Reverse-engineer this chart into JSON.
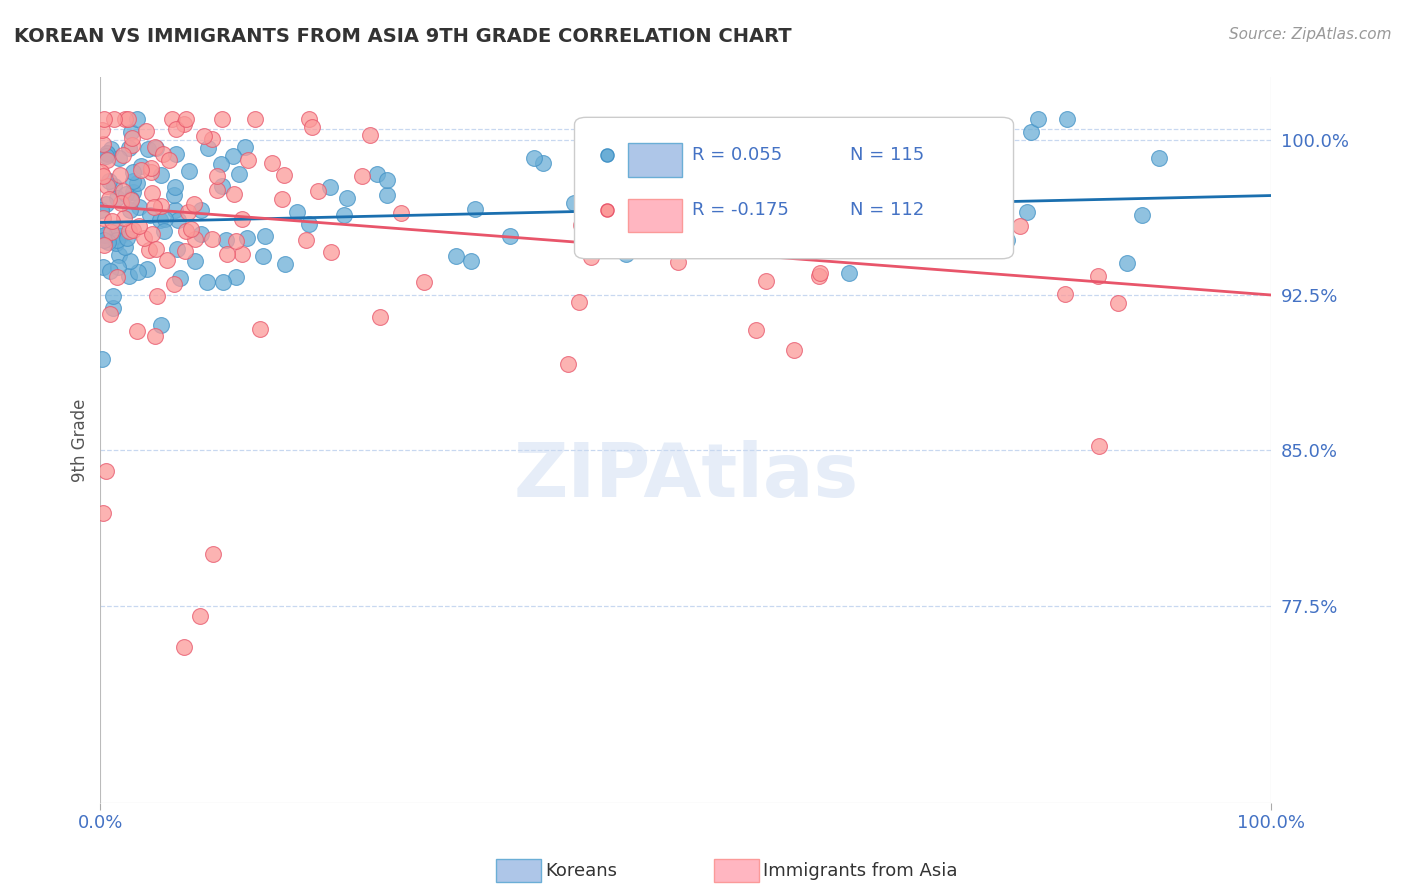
{
  "title": "KOREAN VS IMMIGRANTS FROM ASIA 9TH GRADE CORRELATION CHART",
  "source_text": "Source: ZipAtlas.com",
  "ylabel": "9th Grade",
  "xlim": [
    0.0,
    1.0
  ],
  "ylim": [
    0.68,
    1.03
  ],
  "yticks": [
    0.775,
    0.85,
    0.925,
    1.0
  ],
  "ytick_labels": [
    "77.5%",
    "85.0%",
    "92.5%",
    "100.0%"
  ],
  "xtick_labels": [
    "0.0%",
    "100.0%"
  ],
  "blue_color": "#6baed6",
  "blue_edge_color": "#4292c6",
  "pink_color": "#fb9a99",
  "pink_edge_color": "#e8556a",
  "trend_blue": "#1a6faf",
  "trend_pink": "#e8556a",
  "legend_r_blue": "R = 0.055",
  "legend_n_blue": "N = 115",
  "legend_r_pink": "R = -0.175",
  "legend_n_pink": "N = 112",
  "legend_label_blue": "Koreans",
  "legend_label_pink": "Immigrants from Asia",
  "title_color": "#333333",
  "tick_color": "#4472c4",
  "watermark": "ZIPAtlas",
  "grid_color": "#c8d8f0",
  "background_color": "#ffffff",
  "blue_R": 0.055,
  "pink_R": -0.175,
  "blue_N": 115,
  "pink_N": 112,
  "blue_trend_y": [
    0.96,
    0.973
  ],
  "pink_trend_y": [
    0.968,
    0.925
  ]
}
